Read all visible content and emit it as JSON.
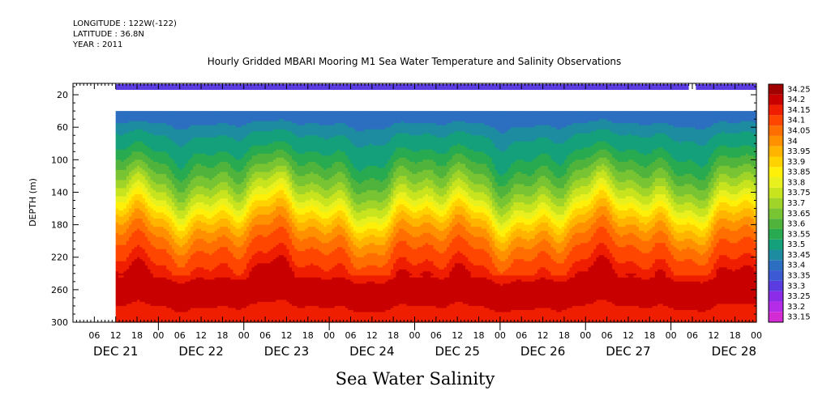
{
  "header": {
    "longitude": "LONGITUDE : 122W(-122)",
    "latitude": "LATITUDE : 36.8N",
    "year": "YEAR : 2011"
  },
  "chart_data": {
    "type": "heatmap",
    "title": "Hourly Gridded MBARI Mooring M1 Sea Water Temperature and Salinity Observations",
    "subtitle": "Sea Water Salinity",
    "ylabel": "DEPTH (m)",
    "xlabel": "",
    "y_axis": {
      "ticks": [
        20,
        60,
        100,
        140,
        180,
        220,
        260,
        300
      ],
      "range": [
        300,
        6
      ],
      "inverted": true
    },
    "x_axis": {
      "hour_ticks": [
        "06",
        "12",
        "18",
        "00",
        "06",
        "12",
        "18",
        "00",
        "06",
        "12",
        "18",
        "00",
        "06",
        "12",
        "18",
        "00",
        "06",
        "12",
        "18",
        "00",
        "06",
        "12",
        "18",
        "00",
        "06",
        "12",
        "18",
        "00",
        "06",
        "12",
        "18",
        "00"
      ],
      "day_labels": [
        "DEC 21",
        "DEC 22",
        "DEC 23",
        "DEC 24",
        "DEC 25",
        "DEC 26",
        "DEC 27",
        "DEC 28"
      ],
      "range_hours_from_dec21_00": [
        0,
        192
      ]
    },
    "data_start_hour": 12,
    "surface_band": {
      "depth": 10,
      "value": 33.3,
      "gap_hours": [
        173,
        175
      ]
    },
    "gap_depth_range": [
      10,
      40
    ],
    "legend": {
      "position": "right",
      "levels": [
        33.15,
        33.2,
        33.25,
        33.3,
        33.35,
        33.4,
        33.45,
        33.5,
        33.55,
        33.6,
        33.65,
        33.7,
        33.75,
        33.8,
        33.85,
        33.9,
        33.95,
        34,
        34.05,
        34.1,
        34.15,
        34.2,
        34.25
      ],
      "labels": [
        "33.15",
        "33.2",
        "33.25",
        "33.3",
        "33.35",
        "33.4",
        "33.45",
        "33.5",
        "33.55",
        "33.6",
        "33.65",
        "33.7",
        "33.75",
        "33.8",
        "33.85",
        "33.9",
        "33.95",
        "34",
        "34.05",
        "34.1",
        "34.15",
        "34.2",
        "34.25"
      ],
      "colors": [
        "#d42cd4",
        "#b42ce8",
        "#8c2ce8",
        "#5a3ce0",
        "#3c5ad4",
        "#2c6ec0",
        "#1e8ca0",
        "#14a07a",
        "#28aa50",
        "#50b43c",
        "#78c432",
        "#a0d428",
        "#c8e41e",
        "#e8f01e",
        "#fff00a",
        "#ffd200",
        "#ffb400",
        "#ff9100",
        "#ff6e00",
        "#ff4600",
        "#f01e00",
        "#c80000",
        "#a00000"
      ]
    },
    "profile_model": {
      "description": "representative salinity vs depth",
      "depth": [
        40,
        55,
        70,
        90,
        110,
        130,
        150,
        170,
        190,
        210,
        230,
        250,
        270,
        290,
        300
      ],
      "salinity": [
        33.4,
        33.45,
        33.5,
        33.55,
        33.62,
        33.7,
        33.8,
        33.93,
        34.03,
        34.1,
        34.15,
        34.22,
        34.22,
        34.18,
        34.18
      ]
    }
  }
}
